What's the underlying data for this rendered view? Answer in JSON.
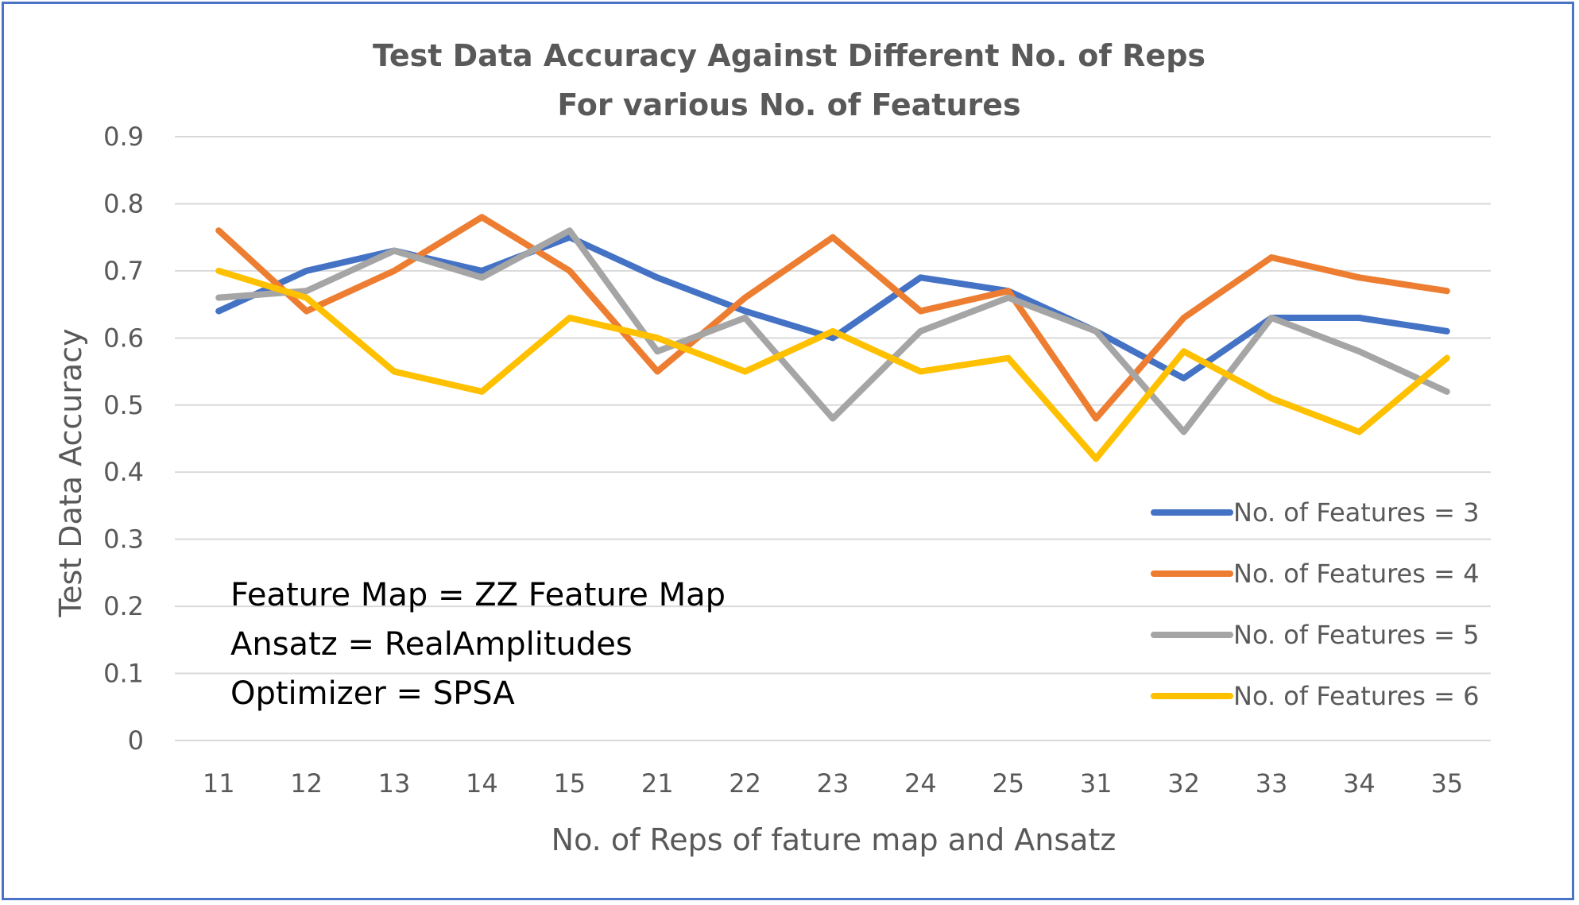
{
  "chart_data": {
    "type": "line",
    "title": "Test Data Accuracy Against Different No. of Reps",
    "subtitle": "For various No. of Features",
    "xlabel": "No. of Reps of fature map and Ansatz",
    "ylabel": "Test Data Accuracy",
    "ylim": [
      0,
      0.9
    ],
    "yticks": [
      "0",
      "0.1",
      "0.2",
      "0.3",
      "0.4",
      "0.5",
      "0.6",
      "0.7",
      "0.8",
      "0.9"
    ],
    "grid": true,
    "legend_position": "right",
    "categories": [
      "11",
      "12",
      "13",
      "14",
      "15",
      "21",
      "22",
      "23",
      "24",
      "25",
      "31",
      "32",
      "33",
      "34",
      "35"
    ],
    "series": [
      {
        "name": "No. of Features = 3",
        "color": "#4472c4",
        "values": [
          0.64,
          0.7,
          0.73,
          0.7,
          0.75,
          0.69,
          0.64,
          0.6,
          0.69,
          0.67,
          0.61,
          0.54,
          0.63,
          0.63,
          0.61
        ]
      },
      {
        "name": "No. of Features = 4",
        "color": "#ed7d31",
        "values": [
          0.76,
          0.64,
          0.7,
          0.78,
          0.7,
          0.55,
          0.66,
          0.75,
          0.64,
          0.67,
          0.48,
          0.63,
          0.72,
          0.69,
          0.67
        ]
      },
      {
        "name": "No. of Features = 5",
        "color": "#a5a5a5",
        "values": [
          0.66,
          0.67,
          0.73,
          0.69,
          0.76,
          0.58,
          0.63,
          0.48,
          0.61,
          0.66,
          0.61,
          0.46,
          0.63,
          0.58,
          0.52
        ]
      },
      {
        "name": "No. of Features = 6",
        "color": "#ffc000",
        "values": [
          0.7,
          0.66,
          0.55,
          0.52,
          0.63,
          0.6,
          0.55,
          0.61,
          0.55,
          0.57,
          0.42,
          0.58,
          0.51,
          0.46,
          0.57
        ]
      }
    ],
    "annotations": [
      "Feature Map = ZZ Feature Map",
      "Ansatz = RealAmplitudes",
      "Optimizer = SPSA"
    ]
  }
}
